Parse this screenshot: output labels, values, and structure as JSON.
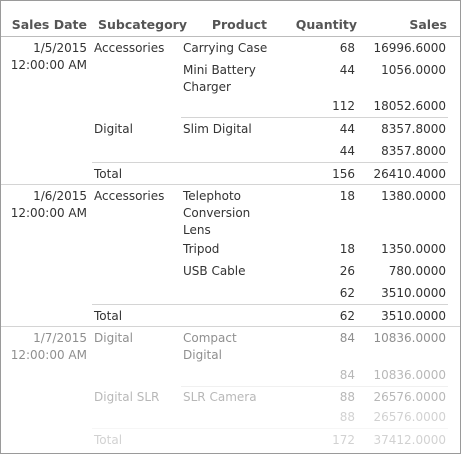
{
  "headers": {
    "sales_date": "Sales Date",
    "subcategory": "Subcategory",
    "product": "Product",
    "quantity": "Quantity",
    "sales": "Sales"
  },
  "groups": [
    {
      "date": "1/5/2015",
      "time": "12:00:00 AM",
      "subgroups": [
        {
          "subcategory": "Accessories",
          "rows": [
            {
              "product_l1": "Carrying Case",
              "product_l2": "",
              "product_l3": "",
              "quantity": "68",
              "sales": "16996.6000"
            },
            {
              "product_l1": "Mini Battery",
              "product_l2": "Charger",
              "product_l3": "",
              "quantity": "44",
              "sales": "1056.0000"
            }
          ],
          "subtotal_quantity": "112",
          "subtotal_sales": "18052.6000"
        },
        {
          "subcategory": "Digital",
          "rows": [
            {
              "product_l1": "Slim Digital",
              "product_l2": "",
              "product_l3": "",
              "quantity": "44",
              "sales": "8357.8000"
            }
          ],
          "subtotal_quantity": "44",
          "subtotal_sales": "8357.8000"
        }
      ],
      "total_label": "Total",
      "total_quantity": "156",
      "total_sales": "26410.4000"
    },
    {
      "date": "1/6/2015",
      "time": "12:00:00 AM",
      "subgroups": [
        {
          "subcategory": "Accessories",
          "rows": [
            {
              "product_l1": "Telephoto",
              "product_l2": "Conversion",
              "product_l3": "Lens",
              "quantity": "18",
              "sales": "1380.0000"
            },
            {
              "product_l1": "Tripod",
              "product_l2": "",
              "product_l3": "",
              "quantity": "18",
              "sales": "1350.0000"
            },
            {
              "product_l1": "USB Cable",
              "product_l2": "",
              "product_l3": "",
              "quantity": "26",
              "sales": "780.0000"
            }
          ],
          "subtotal_quantity": "62",
          "subtotal_sales": "3510.0000"
        }
      ],
      "total_label": "Total",
      "total_quantity": "62",
      "total_sales": "3510.0000"
    },
    {
      "date": "1/7/2015",
      "time": "12:00:00 AM",
      "subgroups": [
        {
          "subcategory": "Digital",
          "rows": [
            {
              "product_l1": "Compact",
              "product_l2": "Digital",
              "product_l3": "",
              "quantity": "84",
              "sales": "10836.0000"
            }
          ],
          "subtotal_quantity": "84",
          "subtotal_sales": "10836.0000"
        },
        {
          "subcategory": "Digital SLR",
          "rows": [
            {
              "product_l1": "SLR Camera",
              "product_l2": "",
              "product_l3": "",
              "quantity": "88",
              "sales": "26576.0000"
            }
          ],
          "subtotal_quantity": "88",
          "subtotal_sales": "26576.0000"
        }
      ],
      "total_label": "Total",
      "total_quantity": "172",
      "total_sales": "37412.0000"
    }
  ]
}
